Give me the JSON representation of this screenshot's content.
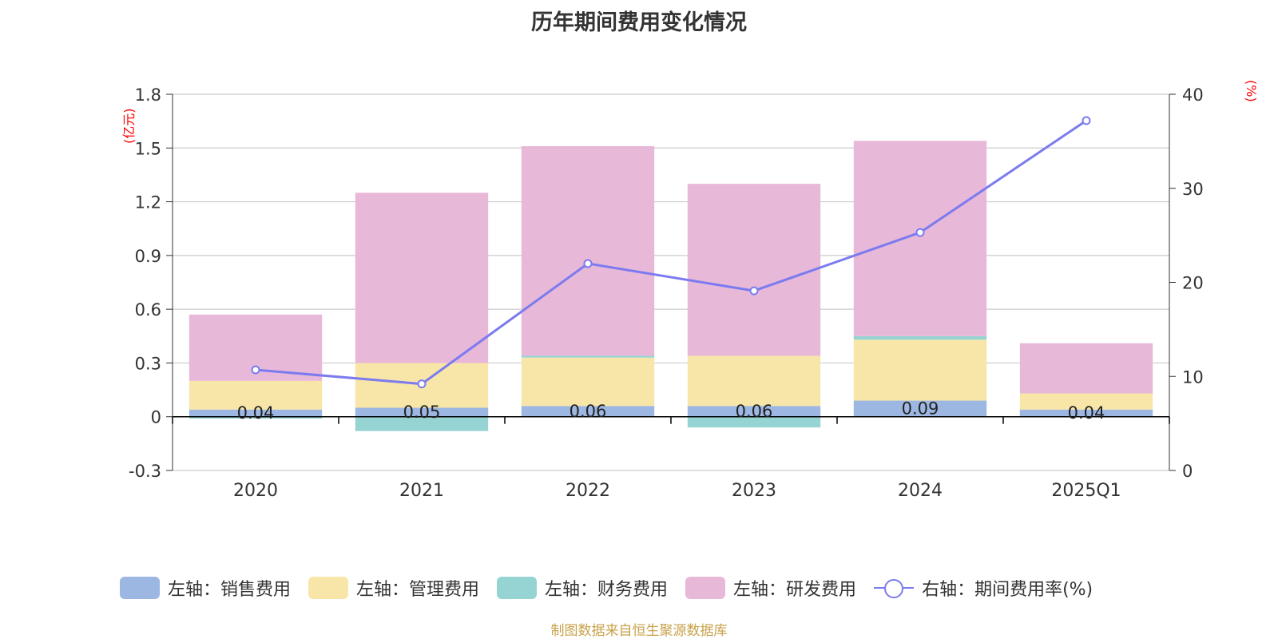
{
  "chart_data": {
    "type": "bar",
    "stacked": true,
    "title": "历年期间费用变化情况",
    "categories": [
      "2020",
      "2021",
      "2022",
      "2023",
      "2024",
      "2025Q1"
    ],
    "y_left": {
      "unit": "(亿元)",
      "ylim": [
        -0.3,
        1.8
      ],
      "ticks": [
        "-0.3",
        "0",
        "0.3",
        "0.6",
        "0.9",
        "1.2",
        "1.5",
        "1.8"
      ]
    },
    "y_right": {
      "unit": "(%)",
      "ylim": [
        0,
        40
      ],
      "ticks": [
        "0",
        "10",
        "20",
        "30",
        "40"
      ]
    },
    "series": [
      {
        "name": "左轴：销售费用",
        "axis": "left",
        "type": "bar",
        "color": "#9db7e3",
        "values": [
          0.04,
          0.05,
          0.06,
          0.06,
          0.09,
          0.04
        ],
        "labels": [
          "0.04",
          "0.05",
          "0.06",
          "0.06",
          "0.09",
          "0.04"
        ]
      },
      {
        "name": "左轴：管理费用",
        "axis": "left",
        "type": "bar",
        "color": "#f8e6a8",
        "values": [
          0.16,
          0.25,
          0.27,
          0.28,
          0.34,
          0.09
        ]
      },
      {
        "name": "左轴：财务费用",
        "axis": "left",
        "type": "bar",
        "color": "#96d4d4",
        "values": [
          -0.01,
          -0.08,
          0.01,
          -0.06,
          0.02,
          0.0
        ]
      },
      {
        "name": "左轴：研发费用",
        "axis": "left",
        "type": "bar",
        "color": "#e8b8d9",
        "values": [
          0.37,
          0.95,
          1.17,
          0.96,
          1.09,
          0.28
        ]
      },
      {
        "name": "右轴：期间费用率(%)",
        "axis": "right",
        "type": "line",
        "color": "#7b7bef",
        "values": [
          10.7,
          9.2,
          22.0,
          19.1,
          25.3,
          37.2
        ]
      }
    ],
    "legend_position": "bottom",
    "grid": true
  },
  "source": "制图数据来自恒生聚源数据库"
}
